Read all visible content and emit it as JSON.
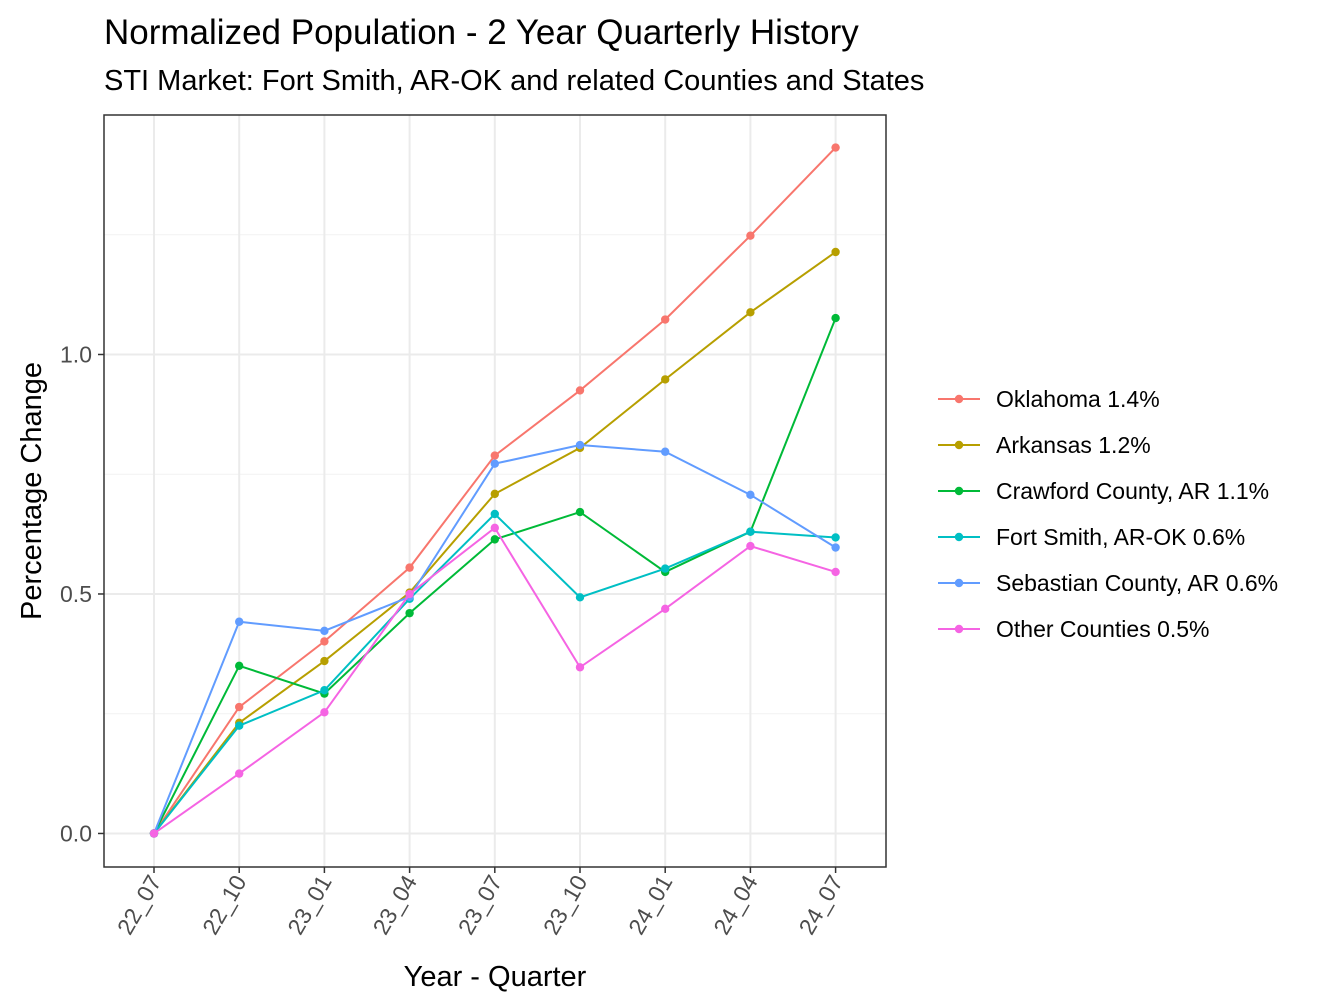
{
  "chart_data": {
    "type": "line",
    "title": "Normalized Population - 2 Year Quarterly History",
    "subtitle": "STI Market: Fort Smith, AR-OK and related Counties and States",
    "xlabel": "Year - Quarter",
    "ylabel": "Percentage Change",
    "categories": [
      "22_07",
      "22_10",
      "23_01",
      "23_04",
      "23_07",
      "23_10",
      "24_01",
      "24_04",
      "24_07"
    ],
    "ylim": [
      -0.07,
      1.5
    ],
    "yticks": [
      0.0,
      0.5,
      1.0
    ],
    "ytick_labels": [
      "0.0",
      "0.5",
      "1.0"
    ],
    "grid": true,
    "legend_position": "right",
    "series": [
      {
        "name": "Oklahoma 1.4%",
        "color": "#F8766D",
        "values": [
          0.0,
          0.264,
          0.401,
          0.555,
          0.789,
          0.925,
          1.073,
          1.248,
          1.432
        ]
      },
      {
        "name": "Arkansas 1.2%",
        "color": "#B79F00",
        "values": [
          0.0,
          0.231,
          0.36,
          0.503,
          0.709,
          0.805,
          0.948,
          1.088,
          1.214
        ]
      },
      {
        "name": "Crawford County, AR 1.1%",
        "color": "#00BA38",
        "values": [
          0.0,
          0.35,
          0.292,
          0.46,
          0.614,
          0.671,
          0.546,
          0.63,
          1.076
        ]
      },
      {
        "name": "Fort Smith, AR-OK 0.6%",
        "color": "#00BFC4",
        "values": [
          0.0,
          0.225,
          0.299,
          0.49,
          0.667,
          0.493,
          0.553,
          0.63,
          0.618
        ]
      },
      {
        "name": "Sebastian County, AR 0.6%",
        "color": "#619CFF",
        "values": [
          0.0,
          0.442,
          0.423,
          0.494,
          0.772,
          0.811,
          0.797,
          0.707,
          0.597
        ]
      },
      {
        "name": "Other Counties 0.5%",
        "color": "#F564E3",
        "values": [
          0.0,
          0.125,
          0.253,
          0.5,
          0.638,
          0.347,
          0.469,
          0.6,
          0.546
        ]
      }
    ]
  }
}
